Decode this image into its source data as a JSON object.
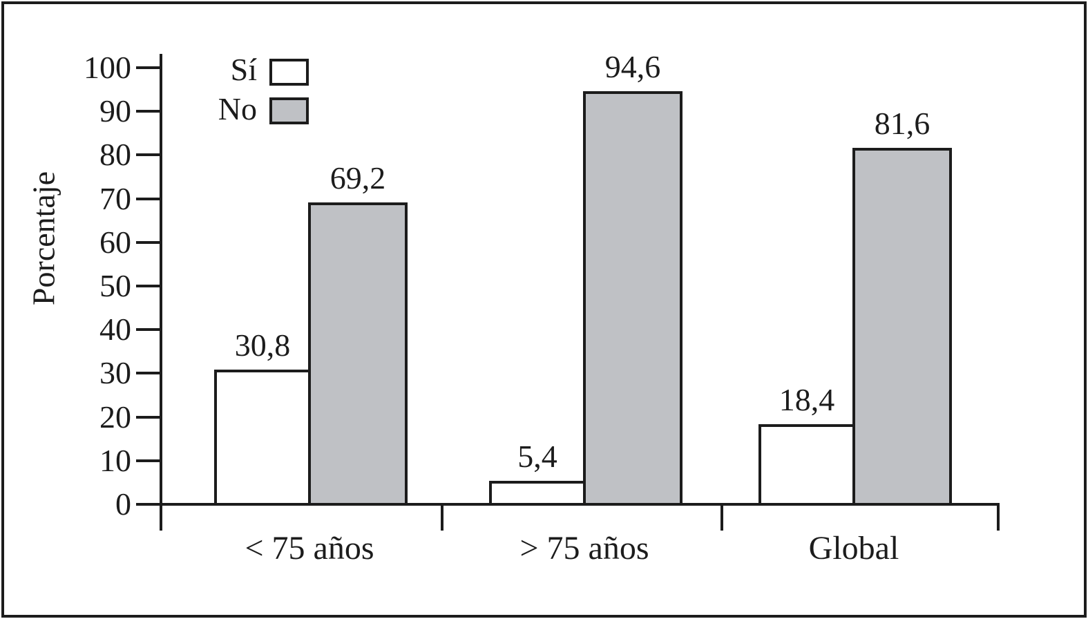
{
  "chart_data": {
    "type": "bar",
    "title": "",
    "xlabel": "",
    "ylabel": "Porcentaje",
    "categories": [
      "< 75 años",
      "> 75 años",
      "Global"
    ],
    "series": [
      {
        "name": "Sí",
        "values": [
          30.8,
          5.4,
          18.4
        ],
        "labels": [
          "30,8",
          "5,4",
          "18,4"
        ],
        "fill": "#ffffff"
      },
      {
        "name": "No",
        "values": [
          69.2,
          94.6,
          81.6
        ],
        "labels": [
          "69,2",
          "94,6",
          "81,6"
        ],
        "fill": "#bfc1c5"
      }
    ],
    "ylim": [
      0,
      100
    ],
    "yticks": [
      0,
      10,
      20,
      30,
      40,
      50,
      60,
      70,
      80,
      90,
      100
    ],
    "grid": false,
    "legend_position": "top-left-inside",
    "value_labels_shown": true,
    "decimal_separator": ",",
    "colors": {
      "axis": "#1c1c1c",
      "bar_edge": "#1c1c1c",
      "si_fill": "#ffffff",
      "no_fill": "#bfc1c5",
      "background": "#ffffff"
    }
  }
}
